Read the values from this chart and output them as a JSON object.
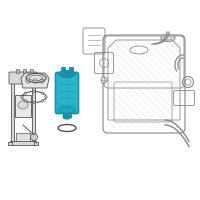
{
  "bg_color": "#ffffff",
  "line_color": "#888888",
  "dark_color": "#555555",
  "highlight_color": "#2ab5c8",
  "highlight_dark": "#1890a8",
  "highlight_mid": "#22a8be",
  "gray_fill": "#d8d8d8",
  "light_fill": "#eeeeee",
  "tank_line": "#999999"
}
